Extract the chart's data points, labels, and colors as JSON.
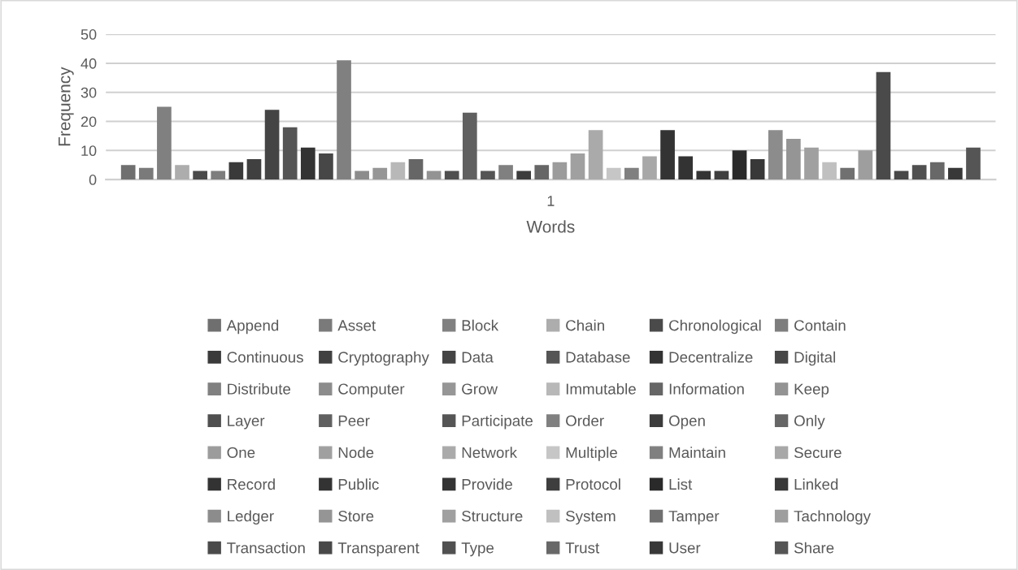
{
  "chart_data": {
    "type": "bar",
    "xlabel": "Words",
    "ylabel": "Frequency",
    "categories": [
      "1"
    ],
    "ylim": [
      0,
      50
    ],
    "yticks": [
      0,
      10,
      20,
      30,
      40,
      50
    ],
    "grid": "y",
    "legend": "bottom",
    "series": [
      {
        "name": "Append",
        "color": "#6f6f6f",
        "values": [
          5
        ]
      },
      {
        "name": "Asset",
        "color": "#7a7a7a",
        "values": [
          4
        ]
      },
      {
        "name": "Block",
        "color": "#808080",
        "values": [
          25
        ]
      },
      {
        "name": "Chain",
        "color": "#adadad",
        "values": [
          5
        ]
      },
      {
        "name": "Chronological",
        "color": "#4a4a4a",
        "values": [
          3
        ]
      },
      {
        "name": "Contain",
        "color": "#7d7d7d",
        "values": [
          3
        ]
      },
      {
        "name": "Continuous",
        "color": "#3a3a3a",
        "values": [
          6
        ]
      },
      {
        "name": "Cryptography",
        "color": "#404040",
        "values": [
          7
        ]
      },
      {
        "name": "Data",
        "color": "#444444",
        "values": [
          24
        ]
      },
      {
        "name": "Database",
        "color": "#555555",
        "values": [
          18
        ]
      },
      {
        "name": "Decentralize",
        "color": "#333333",
        "values": [
          11
        ]
      },
      {
        "name": "Digital",
        "color": "#474747",
        "values": [
          9
        ]
      },
      {
        "name": "Distribute",
        "color": "#808080",
        "values": [
          41
        ]
      },
      {
        "name": "Computer",
        "color": "#8c8c8c",
        "values": [
          3
        ]
      },
      {
        "name": "Grow",
        "color": "#969696",
        "values": [
          4
        ]
      },
      {
        "name": "Immutable",
        "color": "#b8b8b8",
        "values": [
          6
        ]
      },
      {
        "name": "Information",
        "color": "#666666",
        "values": [
          7
        ]
      },
      {
        "name": "Keep",
        "color": "#939393",
        "values": [
          3
        ]
      },
      {
        "name": "Layer",
        "color": "#4f4f4f",
        "values": [
          3
        ]
      },
      {
        "name": "Peer",
        "color": "#606060",
        "values": [
          23
        ]
      },
      {
        "name": "Participate",
        "color": "#555555",
        "values": [
          3
        ]
      },
      {
        "name": "Order",
        "color": "#808080",
        "values": [
          5
        ]
      },
      {
        "name": "Open",
        "color": "#3c3c3c",
        "values": [
          3
        ]
      },
      {
        "name": "Only",
        "color": "#666666",
        "values": [
          5
        ]
      },
      {
        "name": "One",
        "color": "#9c9c9c",
        "values": [
          6
        ]
      },
      {
        "name": "Node",
        "color": "#a0a0a0",
        "values": [
          9
        ]
      },
      {
        "name": "Network",
        "color": "#aaaaaa",
        "values": [
          17
        ]
      },
      {
        "name": "Multiple",
        "color": "#c6c6c6",
        "values": [
          4
        ]
      },
      {
        "name": "Maintain",
        "color": "#808080",
        "values": [
          4
        ]
      },
      {
        "name": "Secure",
        "color": "#a8a8a8",
        "values": [
          8
        ]
      },
      {
        "name": "Record",
        "color": "#333333",
        "values": [
          17
        ]
      },
      {
        "name": "Public",
        "color": "#333333",
        "values": [
          8
        ]
      },
      {
        "name": "Provide",
        "color": "#343434",
        "values": [
          3
        ]
      },
      {
        "name": "Protocol",
        "color": "#3e3e3e",
        "values": [
          3
        ]
      },
      {
        "name": "List",
        "color": "#2a2a2a",
        "values": [
          10
        ]
      },
      {
        "name": "Linked",
        "color": "#383838",
        "values": [
          7
        ]
      },
      {
        "name": "Ledger",
        "color": "#8c8c8c",
        "values": [
          17
        ]
      },
      {
        "name": "Store",
        "color": "#959595",
        "values": [
          14
        ]
      },
      {
        "name": "Structure",
        "color": "#a0a0a0",
        "values": [
          11
        ]
      },
      {
        "name": "System",
        "color": "#c0c0c0",
        "values": [
          6
        ]
      },
      {
        "name": "Tamper",
        "color": "#707070",
        "values": [
          4
        ]
      },
      {
        "name": "Tachnology",
        "color": "#9e9e9e",
        "values": [
          10
        ]
      },
      {
        "name": "Transaction",
        "color": "#4a4a4a",
        "values": [
          37
        ]
      },
      {
        "name": "Transparent",
        "color": "#484848",
        "values": [
          3
        ]
      },
      {
        "name": "Type",
        "color": "#505050",
        "values": [
          5
        ]
      },
      {
        "name": "Trust",
        "color": "#686868",
        "values": [
          6
        ]
      },
      {
        "name": "User",
        "color": "#383838",
        "values": [
          4
        ]
      },
      {
        "name": "Share",
        "color": "#555555",
        "values": [
          11
        ]
      }
    ]
  }
}
